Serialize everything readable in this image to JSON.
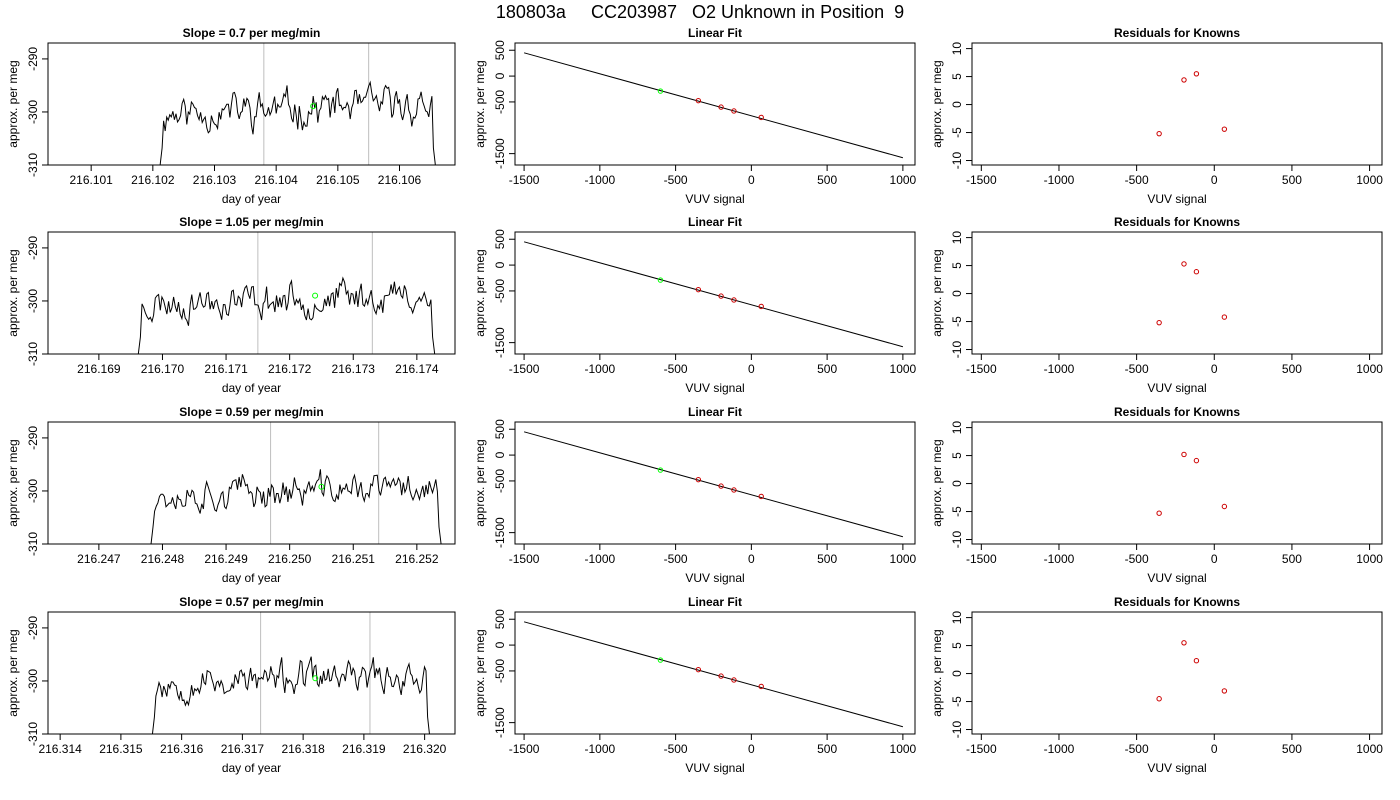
{
  "figure": {
    "title": "180803a     CC203987   O2 Unknown in Position  9"
  },
  "chart_data": [
    {
      "type": "line",
      "row": 1,
      "title_prefix": "Slope = ",
      "slope": "0.7",
      "title_suffix": " per meg/min",
      "xlabel": "day of year",
      "ylabel": "approx. per meg",
      "xlim": [
        216.1003,
        216.1069
      ],
      "ylim": [
        -310,
        -287
      ],
      "xticks": [
        "216.101",
        "216.102",
        "216.103",
        "216.104",
        "216.105",
        "216.106"
      ],
      "yticks": [
        -310,
        -300,
        -290
      ],
      "vlines": [
        216.1038,
        216.1055
      ],
      "marker": {
        "x": 216.1046,
        "y": -298.9
      },
      "x_start": 216.1021,
      "x_end": 216.1066,
      "seed": 11,
      "base": -300.2,
      "amp": 2.6
    },
    {
      "type": "scatter",
      "row": 1,
      "title": "Linear Fit",
      "xlabel": "VUV signal",
      "ylabel": "approx. per meg",
      "xlim": [
        -1560,
        1080
      ],
      "ylim": [
        -1720,
        640
      ],
      "xticks": [
        -1500,
        -1000,
        -500,
        0,
        500,
        1000
      ],
      "yticks": [
        -1500,
        -500,
        0,
        500
      ],
      "fit_line": {
        "x": [
          -1500,
          1000
        ],
        "y": [
          450,
          -1580
        ]
      },
      "knowns": [
        {
          "x": -350,
          "y": -475
        },
        {
          "x": -200,
          "y": -600
        },
        {
          "x": -115,
          "y": -675
        },
        {
          "x": 65,
          "y": -800
        }
      ],
      "unknown": {
        "x": -600,
        "y": -290
      }
    },
    {
      "type": "scatter",
      "row": 1,
      "title": "Residuals for Knowns",
      "xlabel": "VUV signal",
      "ylabel": "approx. per meg",
      "xlim": [
        -1560,
        1080
      ],
      "ylim": [
        -10.8,
        11
      ],
      "xticks": [
        -1500,
        -1000,
        -500,
        0,
        500,
        1000
      ],
      "yticks": [
        -10,
        -5,
        0,
        5,
        10
      ],
      "points": [
        {
          "x": -355,
          "y": -5.2
        },
        {
          "x": -195,
          "y": 4.4
        },
        {
          "x": -115,
          "y": 5.5
        },
        {
          "x": 65,
          "y": -4.4
        }
      ]
    },
    {
      "type": "line",
      "row": 2,
      "title_prefix": "Slope = ",
      "slope": "1.05",
      "title_suffix": " per meg/min",
      "xlabel": "day of year",
      "ylabel": "approx. per meg",
      "xlim": [
        216.1682,
        216.1746
      ],
      "ylim": [
        -310,
        -287
      ],
      "xticks": [
        "216.169",
        "216.170",
        "216.171",
        "216.172",
        "216.173",
        "216.174"
      ],
      "yticks": [
        -310,
        -300,
        -290
      ],
      "vlines": [
        216.1715,
        216.1733
      ],
      "marker": {
        "x": 216.1724,
        "y": -299.0
      },
      "x_start": 216.1696,
      "x_end": 216.1743,
      "seed": 23,
      "base": -300.5,
      "amp": 2.4
    },
    {
      "type": "scatter",
      "row": 2,
      "title": "Linear Fit",
      "xlabel": "VUV signal",
      "ylabel": "approx. per meg",
      "xlim": [
        -1560,
        1080
      ],
      "ylim": [
        -1720,
        640
      ],
      "xticks": [
        -1500,
        -1000,
        -500,
        0,
        500,
        1000
      ],
      "yticks": [
        -1500,
        -500,
        0,
        500
      ],
      "fit_line": {
        "x": [
          -1500,
          1000
        ],
        "y": [
          450,
          -1580
        ]
      },
      "knowns": [
        {
          "x": -350,
          "y": -475
        },
        {
          "x": -200,
          "y": -600
        },
        {
          "x": -115,
          "y": -675
        },
        {
          "x": 65,
          "y": -800
        }
      ],
      "unknown": {
        "x": -600,
        "y": -290
      }
    },
    {
      "type": "scatter",
      "row": 2,
      "title": "Residuals for Knowns",
      "xlabel": "VUV signal",
      "ylabel": "approx. per meg",
      "xlim": [
        -1560,
        1080
      ],
      "ylim": [
        -10.8,
        11
      ],
      "xticks": [
        -1500,
        -1000,
        -500,
        0,
        500,
        1000
      ],
      "yticks": [
        -10,
        -5,
        0,
        5,
        10
      ],
      "points": [
        {
          "x": -355,
          "y": -5.2
        },
        {
          "x": -195,
          "y": 5.3
        },
        {
          "x": -115,
          "y": 3.9
        },
        {
          "x": 65,
          "y": -4.2
        }
      ]
    },
    {
      "type": "line",
      "row": 3,
      "title_prefix": "Slope = ",
      "slope": "0.59",
      "title_suffix": " per meg/min",
      "xlabel": "day of year",
      "ylabel": "approx. per meg",
      "xlim": [
        216.2462,
        216.2526
      ],
      "ylim": [
        -310,
        -287
      ],
      "xticks": [
        "216.247",
        "216.248",
        "216.249",
        "216.250",
        "216.251",
        "216.252"
      ],
      "yticks": [
        -310,
        -300,
        -290
      ],
      "vlines": [
        216.2497,
        216.2514
      ],
      "marker": {
        "x": 216.2505,
        "y": -299.2
      },
      "x_start": 216.2478,
      "x_end": 216.2524,
      "seed": 37,
      "base": -300.8,
      "amp": 2.3
    },
    {
      "type": "scatter",
      "row": 3,
      "title": "Linear Fit",
      "xlabel": "VUV signal",
      "ylabel": "approx. per meg",
      "xlim": [
        -1560,
        1080
      ],
      "ylim": [
        -1720,
        640
      ],
      "xticks": [
        -1500,
        -1000,
        -500,
        0,
        500,
        1000
      ],
      "yticks": [
        -1500,
        -500,
        0,
        500
      ],
      "fit_line": {
        "x": [
          -1500,
          1000
        ],
        "y": [
          450,
          -1580
        ]
      },
      "knowns": [
        {
          "x": -350,
          "y": -475
        },
        {
          "x": -200,
          "y": -600
        },
        {
          "x": -115,
          "y": -675
        },
        {
          "x": 65,
          "y": -800
        }
      ],
      "unknown": {
        "x": -600,
        "y": -290
      }
    },
    {
      "type": "scatter",
      "row": 3,
      "title": "Residuals for Knowns",
      "xlabel": "VUV signal",
      "ylabel": "approx. per meg",
      "xlim": [
        -1560,
        1080
      ],
      "ylim": [
        -10.8,
        11
      ],
      "xticks": [
        -1500,
        -1000,
        -500,
        0,
        500,
        1000
      ],
      "yticks": [
        -10,
        -5,
        0,
        5,
        10
      ],
      "points": [
        {
          "x": -355,
          "y": -5.3
        },
        {
          "x": -195,
          "y": 5.2
        },
        {
          "x": -115,
          "y": 4.1
        },
        {
          "x": 65,
          "y": -4.1
        }
      ]
    },
    {
      "type": "line",
      "row": 4,
      "title_prefix": "Slope = ",
      "slope": "0.57",
      "title_suffix": " per meg/min",
      "xlabel": "day of year",
      "ylabel": "approx. per meg",
      "xlim": [
        216.3138,
        216.3205
      ],
      "ylim": [
        -310,
        -287
      ],
      "xticks": [
        "216.314",
        "216.315",
        "216.316",
        "216.317",
        "216.318",
        "216.319",
        "216.320"
      ],
      "yticks": [
        -310,
        -300,
        -290
      ],
      "vlines": [
        216.3173,
        216.3191
      ],
      "marker": {
        "x": 216.3182,
        "y": -299.5
      },
      "x_start": 216.3155,
      "x_end": 216.3201,
      "seed": 53,
      "base": -300.5,
      "amp": 2.3
    },
    {
      "type": "scatter",
      "row": 4,
      "title": "Linear Fit",
      "xlabel": "VUV signal",
      "ylabel": "approx. per meg",
      "xlim": [
        -1560,
        1080
      ],
      "ylim": [
        -1720,
        640
      ],
      "xticks": [
        -1500,
        -1000,
        -500,
        0,
        500,
        1000
      ],
      "yticks": [
        -1500,
        -500,
        0,
        500
      ],
      "fit_line": {
        "x": [
          -1500,
          1000
        ],
        "y": [
          450,
          -1580
        ]
      },
      "knowns": [
        {
          "x": -350,
          "y": -475
        },
        {
          "x": -200,
          "y": -600
        },
        {
          "x": -115,
          "y": -675
        },
        {
          "x": 65,
          "y": -800
        }
      ],
      "unknown": {
        "x": -600,
        "y": -290
      }
    },
    {
      "type": "scatter",
      "row": 4,
      "title": "Residuals for Knowns",
      "xlabel": "VUV signal",
      "ylabel": "approx. per meg",
      "xlim": [
        -1560,
        1080
      ],
      "ylim": [
        -10.8,
        11
      ],
      "xticks": [
        -1500,
        -1000,
        -500,
        0,
        500,
        1000
      ],
      "yticks": [
        -10,
        -5,
        0,
        5,
        10
      ],
      "points": [
        {
          "x": -355,
          "y": -4.5
        },
        {
          "x": -195,
          "y": 5.5
        },
        {
          "x": -115,
          "y": 2.3
        },
        {
          "x": 65,
          "y": -3.1
        }
      ]
    }
  ],
  "colors": {
    "axis": "#000000",
    "vline": "#bebebe",
    "unknown": "#00ff00",
    "known": "#cd0000"
  }
}
